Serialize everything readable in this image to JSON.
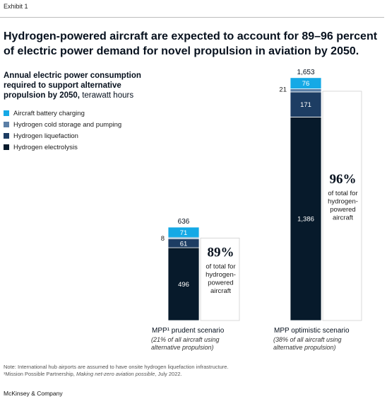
{
  "exhibit": "Exhibit 1",
  "headline": "Hydrogen-powered aircraft are expected to account for 89–96 percent of electric power demand for novel propulsion in aviation by 2050.",
  "subtitle": {
    "bold": "Annual electric power consumption required to support alternative propulsion by 2050,",
    "unit": " terawatt hours"
  },
  "footnote": {
    "note": "Note: International hub airports are assumed to have onsite hydrogen liquefaction infrastructure.",
    "source_prefix": "¹Mission Possible Partnership, ",
    "source_title": "Making net-zero aviation possible",
    "source_suffix": ", July 2022."
  },
  "brand": "McKinsey & Company",
  "colors": {
    "battery": "#15a9e6",
    "cold": "#5b7fa6",
    "liquefaction": "#1d3d63",
    "electrolysis": "#071a2b"
  },
  "chart_data": {
    "type": "bar",
    "stacked": true,
    "unit": "terawatt hours",
    "categories": [
      "MPP¹ prudent scenario",
      "MPP optimistic scenario"
    ],
    "category_notes": [
      [
        "(21% of all aircraft using",
        "alternative propulsion)"
      ],
      [
        "(38% of all aircraft using",
        "alternative propulsion)"
      ]
    ],
    "totals": [
      "636",
      "1,653"
    ],
    "series": [
      {
        "name": "Hydrogen electrolysis",
        "key": "electrolysis",
        "values": [
          496,
          1386
        ],
        "labels": [
          "496",
          "1,386"
        ]
      },
      {
        "name": "Hydrogen liquefaction",
        "key": "liquefaction",
        "values": [
          61,
          171
        ],
        "labels": [
          "61",
          "171"
        ]
      },
      {
        "name": "Hydrogen cold storage and pumping",
        "key": "cold",
        "values": [
          8,
          21
        ],
        "labels": [
          "8",
          "21"
        ]
      },
      {
        "name": "Aircraft battery charging",
        "key": "battery",
        "values": [
          71,
          76
        ],
        "labels": [
          "71",
          "76"
        ]
      }
    ],
    "legend_order": [
      "battery",
      "cold",
      "liquefaction",
      "electrolysis"
    ],
    "callouts": [
      {
        "value": "89%",
        "lines": [
          "of total for",
          "hydrogen-",
          "powered",
          "aircraft"
        ]
      },
      {
        "value": "96%",
        "lines": [
          "of total for",
          "hydrogen-",
          "powered",
          "aircraft"
        ]
      }
    ]
  }
}
